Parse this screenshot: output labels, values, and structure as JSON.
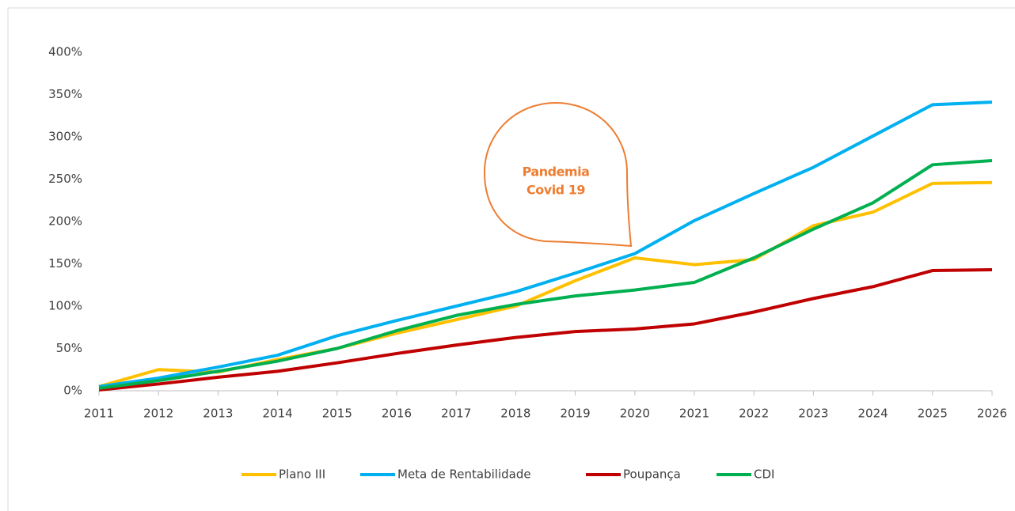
{
  "chart_data": {
    "type": "line",
    "categories": [
      "2011",
      "2012",
      "2013",
      "2014",
      "2015",
      "2016",
      "2017",
      "2018",
      "2019",
      "2020",
      "2021",
      "2022",
      "2023",
      "2024",
      "2025",
      "2026"
    ],
    "series": [
      {
        "name": "Plano III",
        "color": "#ffc000",
        "values": [
          5,
          25,
          22,
          37,
          50,
          68,
          84,
          100,
          130,
          157,
          149,
          155,
          195,
          211,
          245,
          246
        ]
      },
      {
        "name": "Meta de Rentabilidade",
        "color": "#00b0f0",
        "values": [
          5,
          15,
          28,
          42,
          65,
          83,
          100,
          117,
          139,
          162,
          201,
          233,
          264,
          301,
          338,
          341
        ]
      },
      {
        "name": "Poupança",
        "color": "#c00000",
        "values": [
          1,
          8,
          16,
          23,
          33,
          44,
          54,
          63,
          70,
          73,
          79,
          93,
          109,
          123,
          142,
          143
        ]
      },
      {
        "name": "CDI",
        "color": "#00b050",
        "values": [
          3,
          12,
          23,
          35,
          50,
          71,
          89,
          102,
          112,
          119,
          128,
          157,
          191,
          222,
          267,
          272
        ]
      }
    ],
    "ylim": [
      0,
      400
    ],
    "yticks": [
      {
        "value": 0,
        "label": "0%"
      },
      {
        "value": 50,
        "label": "50%"
      },
      {
        "value": 100,
        "label": "100%"
      },
      {
        "value": 150,
        "label": "150%"
      },
      {
        "value": 200,
        "label": "200%"
      },
      {
        "value": 250,
        "label": "250%"
      },
      {
        "value": 300,
        "label": "300%"
      },
      {
        "value": 350,
        "label": "350%"
      },
      {
        "value": 400,
        "label": "400%"
      }
    ],
    "annotation": [
      "Pandemia",
      "Covid 19"
    ],
    "legend": "bottom"
  }
}
